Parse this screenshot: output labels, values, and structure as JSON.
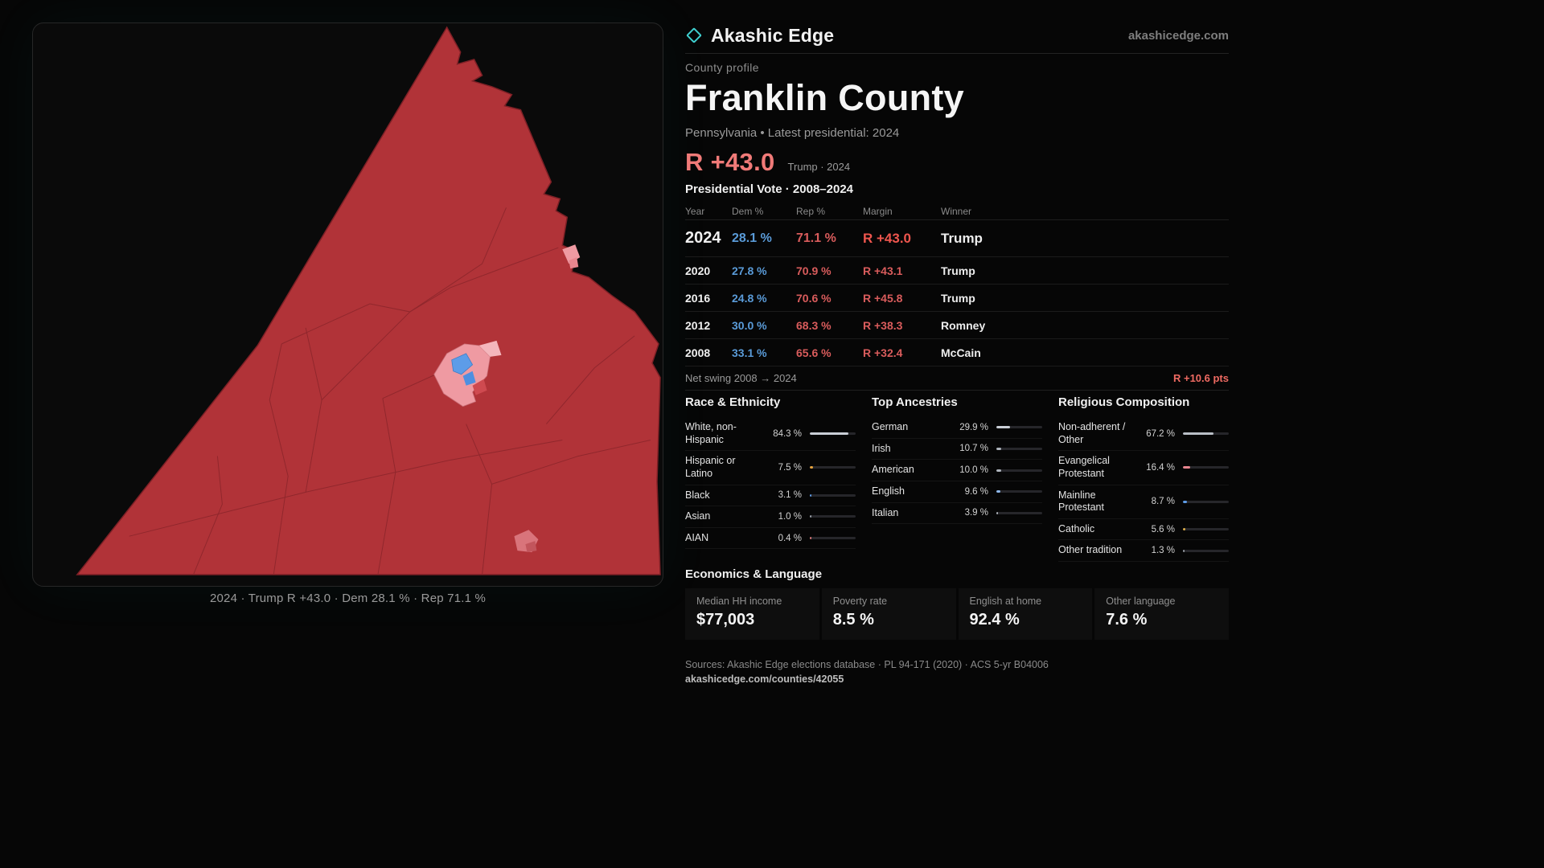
{
  "brand": {
    "name": "Akashic Edge",
    "domain": "akashicedge.com",
    "accent": "#3fd0d0"
  },
  "map": {
    "caption": "2024 · Trump R +43.0 · Dem 28.1 % · Rep 71.1 %",
    "fill_color": "#b13338",
    "boundary_color": "#8b252b",
    "dem_precinct_color": "#5d9ce8",
    "flip_precinct_color": "#ef9aa2"
  },
  "profile": {
    "kicker": "County profile",
    "title": "Franklin County",
    "subtitle": "Pennsylvania • Latest presidential: 2024",
    "headline_margin": "R +43.0",
    "headline_note": "Trump · 2024"
  },
  "vote_table": {
    "title": "Presidential Vote · 2008–2024",
    "columns": [
      "Year",
      "Dem %",
      "Rep %",
      "Margin",
      "Winner"
    ],
    "rows": [
      {
        "year": "2024",
        "dem": "28.1 %",
        "rep": "71.1 %",
        "margin": "R +43.0",
        "winner": "Trump",
        "emphasis": true
      },
      {
        "year": "2020",
        "dem": "27.8 %",
        "rep": "70.9 %",
        "margin": "R +43.1",
        "winner": "Trump",
        "emphasis": false
      },
      {
        "year": "2016",
        "dem": "24.8 %",
        "rep": "70.6 %",
        "margin": "R +45.8",
        "winner": "Trump",
        "emphasis": false
      },
      {
        "year": "2012",
        "dem": "30.0 %",
        "rep": "68.3 %",
        "margin": "R +38.3",
        "winner": "Romney",
        "emphasis": false
      },
      {
        "year": "2008",
        "dem": "33.1 %",
        "rep": "65.6 %",
        "margin": "R +32.4",
        "winner": "McCain",
        "emphasis": false
      }
    ]
  },
  "net_swing": {
    "label": "Net swing 2008 → 2024",
    "value": "R +10.6 pts"
  },
  "demographics": [
    {
      "title": "Race & Ethnicity",
      "rows": [
        {
          "label": "White, non-Hispanic",
          "value": "84.3 %",
          "pct": 84.3,
          "color": "#c9ced6"
        },
        {
          "label": "Hispanic or Latino",
          "value": "7.5 %",
          "pct": 7.5,
          "color": "#e6a23c"
        },
        {
          "label": "Black",
          "value": "3.1 %",
          "pct": 3.1,
          "color": "#5d9ce8"
        },
        {
          "label": "Asian",
          "value": "1.0 %",
          "pct": 1.0,
          "color": "#9aa0a8"
        },
        {
          "label": "AIAN",
          "value": "0.4 %",
          "pct": 0.4,
          "color": "#e07a7a"
        }
      ]
    },
    {
      "title": "Top Ancestries",
      "rows": [
        {
          "label": "German",
          "value": "29.9 %",
          "pct": 29.9,
          "color": "#c9ced6"
        },
        {
          "label": "Irish",
          "value": "10.7 %",
          "pct": 10.7,
          "color": "#aeb4bc"
        },
        {
          "label": "American",
          "value": "10.0 %",
          "pct": 10.0,
          "color": "#aeb4bc"
        },
        {
          "label": "English",
          "value": "9.6 %",
          "pct": 9.6,
          "color": "#8fb8ea"
        },
        {
          "label": "Italian",
          "value": "3.9 %",
          "pct": 3.9,
          "color": "#aeb4bc"
        }
      ]
    },
    {
      "title": "Religious Composition",
      "rows": [
        {
          "label": "Non-adherent / Other",
          "value": "67.2 %",
          "pct": 67.2,
          "color": "#b9bec6"
        },
        {
          "label": "Evangelical Protestant",
          "value": "16.4 %",
          "pct": 16.4,
          "color": "#e8858f"
        },
        {
          "label": "Mainline Protestant",
          "value": "8.7 %",
          "pct": 8.7,
          "color": "#5d9ce8"
        },
        {
          "label": "Catholic",
          "value": "5.6 %",
          "pct": 5.6,
          "color": "#e0b04a"
        },
        {
          "label": "Other tradition",
          "value": "1.3 %",
          "pct": 1.3,
          "color": "#9aa0a8"
        }
      ]
    }
  ],
  "economics": {
    "title": "Economics & Language",
    "stats": [
      {
        "label": "Median HH income",
        "value": "$77,003"
      },
      {
        "label": "Poverty rate",
        "value": "8.5 %"
      },
      {
        "label": "English at home",
        "value": "92.4 %"
      },
      {
        "label": "Other language",
        "value": "7.6 %"
      }
    ]
  },
  "footer": {
    "sources": "Sources: Akashic Edge elections database · PL 94-171 (2020) · ACS 5-yr B04006",
    "link": "akashicedge.com/counties/42055"
  }
}
